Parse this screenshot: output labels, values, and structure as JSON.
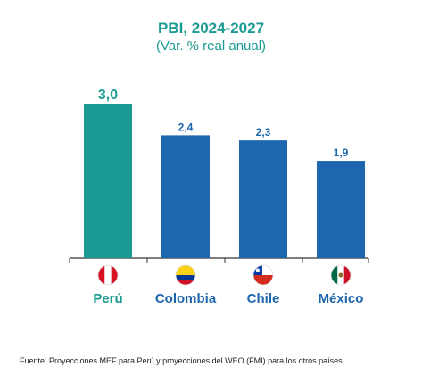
{
  "header": {
    "title": "PBI, 2024-2027",
    "subtitle": "(Var. % real anual)"
  },
  "footer": {
    "source": "Fuente: Proyecciones MEF para Perú y proyecciones del WEO (FMI) para los otros países."
  },
  "colors": {
    "highlight": "#1a9a92",
    "bar": "#1e66ad",
    "axis": "#333333"
  },
  "chart_data": {
    "type": "bar",
    "title": "PBI, 2024-2027",
    "subtitle": "(Var. % real anual)",
    "categories": [
      "Perú",
      "Colombia",
      "Chile",
      "México"
    ],
    "values": [
      3.0,
      2.4,
      2.3,
      1.9
    ],
    "value_labels": [
      "3,0",
      "2,4",
      "2,3",
      "1,9"
    ],
    "flags": [
      "peru-flag-icon",
      "colombia-flag-icon",
      "chile-flag-icon",
      "mexico-flag-icon"
    ],
    "highlight_index": 0,
    "ylim": [
      0,
      3.0
    ],
    "grid": false,
    "legend": "none",
    "xlabel": "",
    "ylabel": ""
  }
}
